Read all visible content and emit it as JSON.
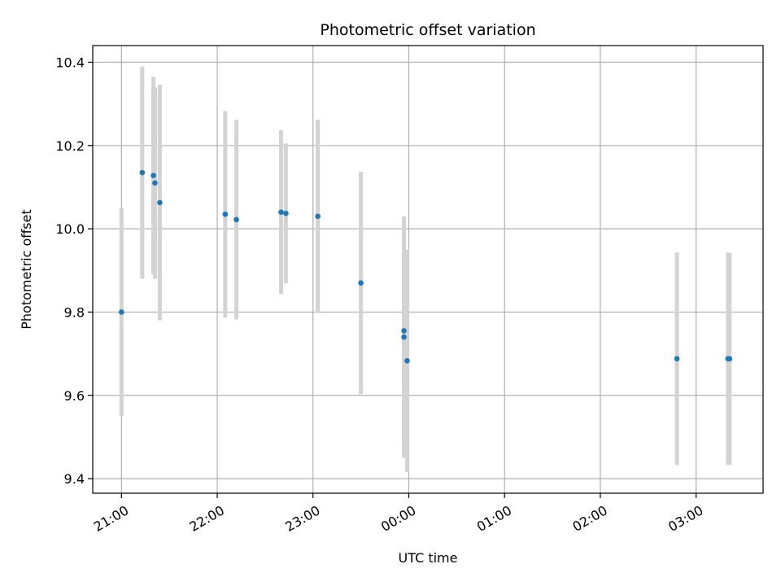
{
  "chart_data": {
    "type": "scatter",
    "title": "Photometric offset variation",
    "xlabel": "UTC time",
    "ylabel": "Photometric offset",
    "x_start": "2023-01-01T20:42",
    "x_end": "2023-01-02T03:42",
    "xlim": [
      "20:42",
      "03:42"
    ],
    "ylim": [
      9.365,
      10.44
    ],
    "grid": true,
    "legend": "none",
    "x_ticks": [
      "21:00",
      "22:00",
      "23:00",
      "00:00",
      "01:00",
      "02:00",
      "03:00"
    ],
    "y_ticks": [
      9.4,
      9.6,
      9.8,
      10.0,
      10.2,
      10.4
    ],
    "y_tick_labels": [
      "9.4",
      "9.6",
      "9.8",
      "10.0",
      "10.2",
      "10.4"
    ],
    "marker_color": "#1f77b4",
    "errorbar_color": "#d3d3d3",
    "points": [
      {
        "t": "21:00",
        "y": 9.8,
        "err": 0.25
      },
      {
        "t": "21:13",
        "y": 10.135,
        "err": 0.255
      },
      {
        "t": "21:20",
        "y": 10.128,
        "err": 0.237
      },
      {
        "t": "21:21",
        "y": 10.11,
        "err": 0.23
      },
      {
        "t": "21:24",
        "y": 10.063,
        "err": 0.283
      },
      {
        "t": "22:05",
        "y": 10.035,
        "err": 0.248
      },
      {
        "t": "22:12",
        "y": 10.022,
        "err": 0.24
      },
      {
        "t": "22:40",
        "y": 10.04,
        "err": 0.197
      },
      {
        "t": "22:43",
        "y": 10.037,
        "err": 0.168
      },
      {
        "t": "23:03",
        "y": 10.03,
        "err": 0.232
      },
      {
        "t": "23:30",
        "y": 9.87,
        "err": 0.267
      },
      {
        "t": "23:57",
        "y": 9.755,
        "err": 0.273
      },
      {
        "t": "23:57",
        "y": 9.74,
        "err": 0.29
      },
      {
        "t": "23:59",
        "y": 9.683,
        "err": 0.267
      },
      {
        "t": "02:48",
        "y": 9.688,
        "err": 0.255
      },
      {
        "t": "03:20",
        "y": 9.688,
        "err": 0.255
      },
      {
        "t": "03:21",
        "y": 9.688,
        "err": 0.255
      }
    ]
  }
}
